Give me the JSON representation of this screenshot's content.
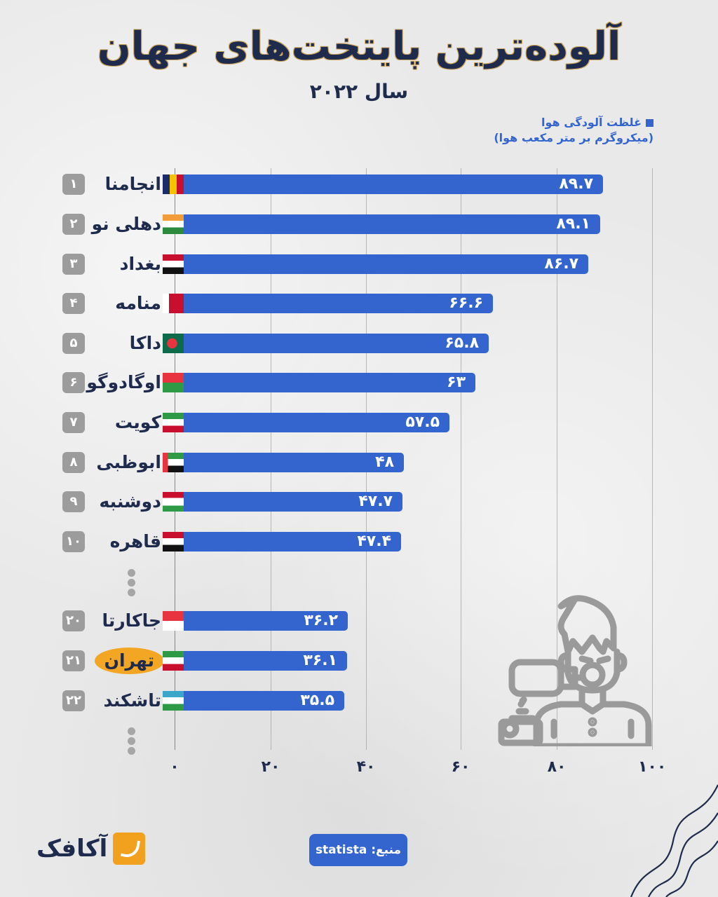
{
  "header": {
    "title": "آلوده‌ترین پایتخت‌های جهان",
    "subtitle": "سال ۲۰۲۲"
  },
  "legend": {
    "line1": "غلظت آلودگی هوا",
    "line2": "(میکروگرم بر متر مکعب هوا)",
    "color": "#3465cf"
  },
  "axis": {
    "ticks": [
      "۰",
      "۲۰",
      "۴۰",
      "۶۰",
      "۸۰",
      "۱۰۰"
    ]
  },
  "rows": [
    {
      "rank": "۱",
      "city": "انجامنا",
      "flag": "chad",
      "value_label": "۸۹.۷"
    },
    {
      "rank": "۲",
      "city": "دهلی نو",
      "flag": "india",
      "value_label": "۸۹.۱"
    },
    {
      "rank": "۳",
      "city": "بغداد",
      "flag": "iraq",
      "value_label": "۸۶.۷"
    },
    {
      "rank": "۴",
      "city": "منامه",
      "flag": "bahrain",
      "value_label": "۶۶.۶"
    },
    {
      "rank": "۵",
      "city": "داکا",
      "flag": "bangladesh",
      "value_label": "۶۵.۸"
    },
    {
      "rank": "۶",
      "city": "اوگادوگو",
      "flag": "burkina-faso",
      "value_label": "۶۳"
    },
    {
      "rank": "۷",
      "city": "کویت",
      "flag": "kuwait",
      "value_label": "۵۷.۵"
    },
    {
      "rank": "۸",
      "city": "ابوظبی",
      "flag": "uae",
      "value_label": "۴۸"
    },
    {
      "rank": "۹",
      "city": "دوشنبه",
      "flag": "tajikistan",
      "value_label": "۴۷.۷"
    },
    {
      "rank": "۱۰",
      "city": "قاهره",
      "flag": "egypt",
      "value_label": "۴۷.۴"
    },
    {
      "rank": "۲۰",
      "city": "جاکارتا",
      "flag": "indonesia",
      "value_label": "۳۶.۲"
    },
    {
      "rank": "۲۱",
      "city": "تهران",
      "flag": "iran",
      "value_label": "۳۶.۱",
      "highlight": true
    },
    {
      "rank": "۲۲",
      "city": "تاشکند",
      "flag": "uzbekistan",
      "value_label": "۳۵.۵"
    }
  ],
  "footer": {
    "logo_text": "آکافک",
    "source_label": "منبع: statista"
  },
  "colors": {
    "bar": "#3465cf",
    "title": "#1f2b4d",
    "highlight": "#f3a623",
    "rank_badge": "#9c9c9c"
  },
  "chart_data": {
    "type": "bar",
    "orientation": "horizontal",
    "title": "آلوده‌ترین پایتخت‌های جهان",
    "subtitle": "سال ۲۰۲۲",
    "xlabel": "غلظت آلودگی هوا (میکروگرم بر متر مکعب هوا)",
    "ylabel": "",
    "categories": [
      "انجامنا",
      "دهلی نو",
      "بغداد",
      "منامه",
      "داکا",
      "اوگادوگو",
      "کویت",
      "ابوظبی",
      "دوشنبه",
      "قاهره",
      "جاکارتا",
      "تهران",
      "تاشکند"
    ],
    "ranks": [
      1,
      2,
      3,
      4,
      5,
      6,
      7,
      8,
      9,
      10,
      20,
      21,
      22
    ],
    "values": [
      89.7,
      89.1,
      86.7,
      66.6,
      65.8,
      63,
      57.5,
      48,
      47.7,
      47.4,
      36.2,
      36.1,
      35.5
    ],
    "xlim": [
      0,
      100
    ],
    "xticks": [
      0,
      20,
      40,
      60,
      80,
      100
    ],
    "grid": true,
    "legend": [
      "غلظت آلودگی هوا (میکروگرم بر متر مکعب هوا)"
    ],
    "legend_position": "top-right",
    "highlighted_category": "تهران",
    "source": "statista"
  }
}
